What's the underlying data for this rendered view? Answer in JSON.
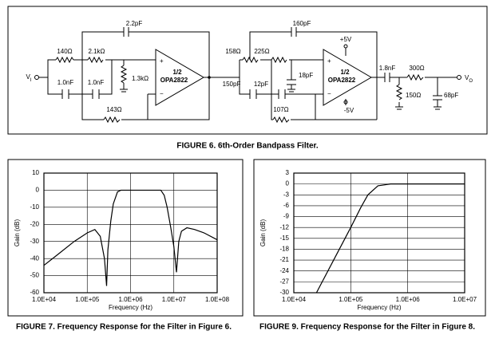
{
  "figure6": {
    "vin": "V",
    "vin_sub": "I",
    "r1": "140Ω",
    "r2": "2.1kΩ",
    "r3": "1.3kΩ",
    "c1": "1.0nF",
    "c2": "1.0nF",
    "r4": "143Ω",
    "c3": "2.2pF",
    "plus": "+",
    "minus": "−",
    "half1": "1/2",
    "opamp1": "OPA2822",
    "r5": "158Ω",
    "r6": "225Ω",
    "c4": "150pF",
    "c5": "12pF",
    "c6": "18pF",
    "r7": "107Ω",
    "c7": "160pF",
    "plus2": "+",
    "minus2": "−",
    "half2": "1/2",
    "opamp2": "OPA2822",
    "vpos": "+5V",
    "vneg": "-5V",
    "c8": "1.8nF",
    "r8": "300Ω",
    "r9": "150Ω",
    "c9": "68pF",
    "vout": "V",
    "vout_sub": "O",
    "caption": "FIGURE 6. 6th-Order Bandpass Filter."
  },
  "chart_data": [
    {
      "type": "line",
      "caption": "FIGURE 7. Frequency Response for the Filter in Figure 6.",
      "xlabel": "Frequency (Hz)",
      "ylabel": "Gain (dB)",
      "color": "#000000",
      "xscale": "log",
      "grid": true,
      "x": [
        10000,
        20000,
        50000,
        100000,
        150000,
        200000,
        250000,
        280000,
        300000,
        350000,
        400000,
        500000,
        600000,
        1000000,
        3000000,
        5000000,
        6000000,
        7000000,
        8500000,
        10000000,
        11500000,
        13000000,
        15000000,
        20000000,
        30000000,
        50000000,
        100000000
      ],
      "values": [
        -44,
        -38,
        -30,
        -25,
        -23,
        -27,
        -40,
        -56,
        -35,
        -18,
        -8,
        -1,
        0,
        0,
        0,
        0,
        -3,
        -10,
        -22,
        -33,
        -48,
        -30,
        -24,
        -22,
        -23,
        -25,
        -29
      ],
      "xlim": [
        10000,
        100000000
      ],
      "ylim": [
        -60,
        10
      ],
      "xticks": [
        {
          "value": 10000,
          "label": "1.0E+04"
        },
        {
          "value": 100000,
          "label": "1.0E+05"
        },
        {
          "value": 1000000,
          "label": "1.0E+06"
        },
        {
          "value": 10000000,
          "label": "1.0E+07"
        },
        {
          "value": 100000000,
          "label": "1.0E+08"
        }
      ],
      "yticks": [
        10,
        0,
        -10,
        -20,
        -30,
        -40,
        -50,
        -60
      ]
    },
    {
      "type": "line",
      "caption": "FIGURE 9. Frequency Response for the Filter in Figure 8.",
      "xlabel": "Frequency (Hz)",
      "ylabel": "Gain (dB)",
      "color": "#000000",
      "xscale": "log",
      "grid": true,
      "x": [
        25000,
        50000,
        100000,
        150000,
        200000,
        300000,
        500000,
        10000000
      ],
      "values": [
        -30,
        -21,
        -12,
        -6.5,
        -3,
        -0.5,
        0,
        0
      ],
      "xlim": [
        10000,
        10000000
      ],
      "ylim": [
        -30,
        3
      ],
      "xticks": [
        {
          "value": 10000,
          "label": "1.0E+04"
        },
        {
          "value": 100000,
          "label": "1.0E+05"
        },
        {
          "value": 1000000,
          "label": "1.0E+06"
        },
        {
          "value": 10000000,
          "label": "1.0E+07"
        }
      ],
      "yticks": [
        3,
        0,
        -3,
        -6,
        -9,
        -12,
        -15,
        -18,
        -21,
        -24,
        -27,
        -30
      ]
    }
  ]
}
